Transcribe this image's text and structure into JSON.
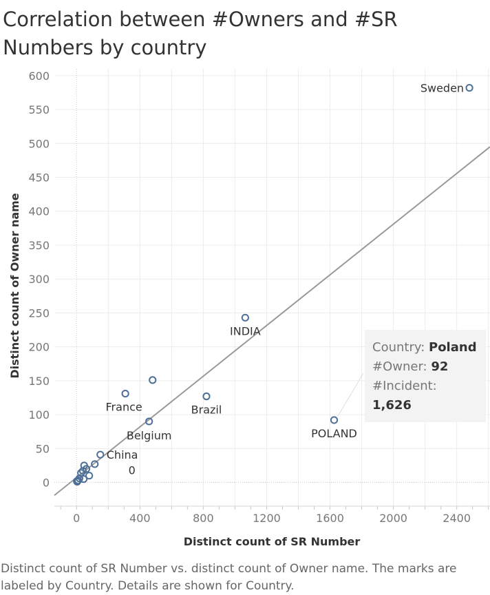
{
  "title": "Correlation between #Owners and #SR Numbers by country",
  "caption": "Distinct count of SR Number vs. distinct count of Owner name.  The marks are labeled by Country.  Details are shown for Country.",
  "tooltip": {
    "country_label": "Country:",
    "country_value": "Poland",
    "owner_label": "#Owner:",
    "owner_value": "92",
    "incident_label": "#Incident:",
    "incident_value": "1,626"
  },
  "chart_data": {
    "type": "scatter",
    "title": "Correlation between #Owners and #SR Numbers by country",
    "xlabel": "Distinct count of SR Number",
    "ylabel": "Distinct count of Owner name",
    "xlim": [
      -140,
      2610
    ],
    "ylim": [
      -35,
      610
    ],
    "xticks": [
      0,
      400,
      800,
      1200,
      1600,
      2000,
      2400
    ],
    "yticks": [
      0,
      50,
      100,
      150,
      200,
      250,
      300,
      350,
      400,
      450,
      500,
      550,
      600
    ],
    "grid": true,
    "trend_line": {
      "from": [
        -140,
        -19
      ],
      "to": [
        2610,
        495
      ]
    },
    "colors": {
      "marker": "#4e6f97",
      "trend": "#999999",
      "grid": "#ececec",
      "zero_line": "#c8c8c8"
    },
    "points": [
      {
        "label": "Sweden",
        "x": 2480,
        "y": 582
      },
      {
        "label": "INDIA",
        "x": 1065,
        "y": 243
      },
      {
        "label": "POLAND",
        "x": 1626,
        "y": 92
      },
      {
        "label": "",
        "x": 480,
        "y": 151
      },
      {
        "label": "France",
        "x": 308,
        "y": 131
      },
      {
        "label": "Brazil",
        "x": 820,
        "y": 127
      },
      {
        "label": "Belgium",
        "x": 458,
        "y": 90
      },
      {
        "label": "China",
        "x": 150,
        "y": 41
      },
      {
        "label": "0",
        "x": 80,
        "y": 10
      },
      {
        "label": "",
        "x": 115,
        "y": 27
      },
      {
        "label": "",
        "x": 48,
        "y": 25
      },
      {
        "label": "",
        "x": 62,
        "y": 20
      },
      {
        "label": "",
        "x": 40,
        "y": 17
      },
      {
        "label": "",
        "x": 28,
        "y": 14
      },
      {
        "label": "",
        "x": 45,
        "y": 5
      },
      {
        "label": "",
        "x": 18,
        "y": 6
      },
      {
        "label": "",
        "x": 10,
        "y": 3
      },
      {
        "label": "",
        "x": 4,
        "y": 1
      },
      {
        "label": "",
        "x": 2,
        "y": 2
      }
    ]
  }
}
